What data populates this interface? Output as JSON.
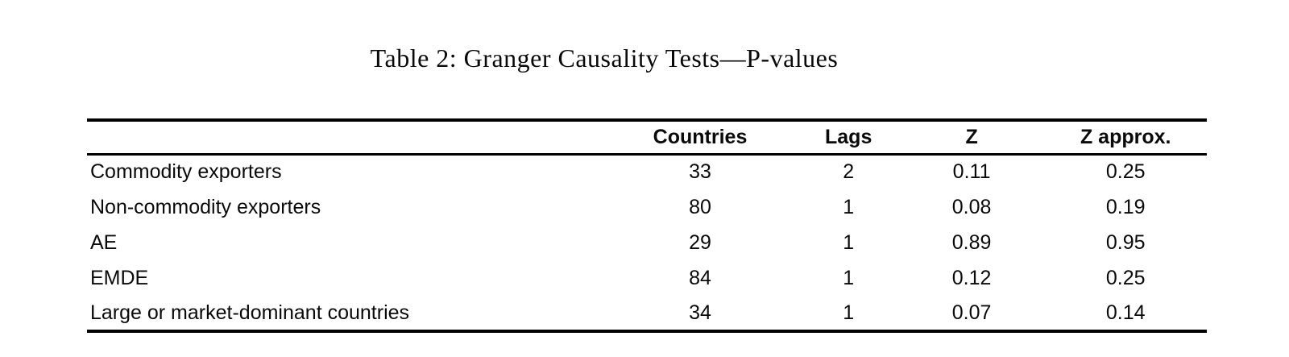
{
  "title": "Table 2: Granger Causality Tests—P-values",
  "table": {
    "columns": [
      "",
      "Countries",
      "Lags",
      "Z",
      "Z approx."
    ],
    "rows": [
      [
        "Commodity exporters",
        "33",
        "2",
        "0.11",
        "0.25"
      ],
      [
        "Non-commodity exporters",
        "80",
        "1",
        "0.08",
        "0.19"
      ],
      [
        "AE",
        "29",
        "1",
        "0.89",
        "0.95"
      ],
      [
        "EMDE",
        "84",
        "1",
        "0.12",
        "0.25"
      ],
      [
        "Large or market-dominant countries",
        "34",
        "1",
        "0.07",
        "0.14"
      ]
    ]
  },
  "colors": {
    "background": "#ffffff",
    "text": "#0a0a0a",
    "rule": "#000000"
  }
}
